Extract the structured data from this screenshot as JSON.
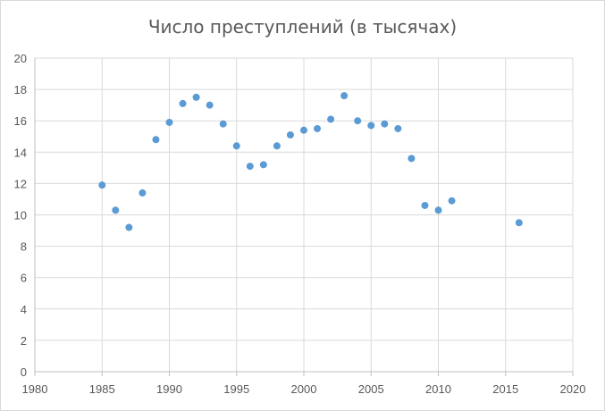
{
  "chart_data": {
    "type": "scatter",
    "title": "Число преступлений (в тысячах)",
    "xlabel": "",
    "ylabel": "",
    "xlim": [
      1980,
      2020
    ],
    "ylim": [
      0,
      20
    ],
    "xticks": [
      1980,
      1985,
      1990,
      1995,
      2000,
      2005,
      2010,
      2015,
      2020
    ],
    "yticks": [
      0,
      2,
      4,
      6,
      8,
      10,
      12,
      14,
      16,
      18,
      20
    ],
    "grid": true,
    "legend": "none",
    "marker_color": "#5b9bd5",
    "grid_color": "#d9d9d9",
    "series": [
      {
        "points": [
          [
            1985,
            11.9
          ],
          [
            1986,
            10.3
          ],
          [
            1987,
            9.2
          ],
          [
            1988,
            11.4
          ],
          [
            1989,
            14.8
          ],
          [
            1990,
            15.9
          ],
          [
            1991,
            17.1
          ],
          [
            1992,
            17.5
          ],
          [
            1993,
            17.0
          ],
          [
            1994,
            15.8
          ],
          [
            1995,
            14.4
          ],
          [
            1996,
            13.1
          ],
          [
            1997,
            13.2
          ],
          [
            1998,
            14.4
          ],
          [
            1999,
            15.1
          ],
          [
            2000,
            15.4
          ],
          [
            2001,
            15.5
          ],
          [
            2002,
            16.1
          ],
          [
            2003,
            17.6
          ],
          [
            2004,
            16.0
          ],
          [
            2005,
            15.7
          ],
          [
            2006,
            15.8
          ],
          [
            2007,
            15.5
          ],
          [
            2008,
            13.6
          ],
          [
            2009,
            10.6
          ],
          [
            2010,
            10.3
          ],
          [
            2011,
            10.9
          ],
          [
            2016,
            9.5
          ]
        ]
      }
    ]
  }
}
